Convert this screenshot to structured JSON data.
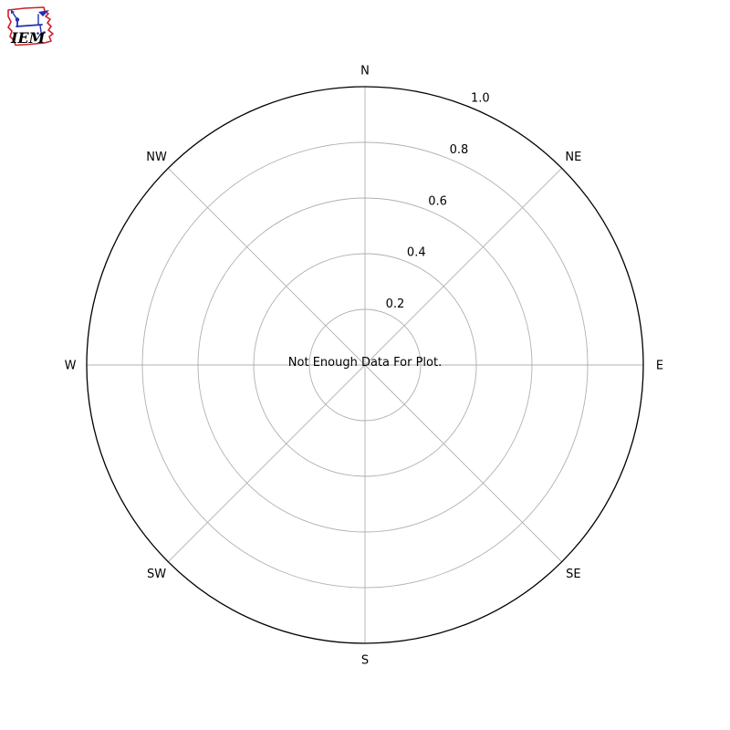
{
  "logo": {
    "name": "Iowa Environmental Mesonet",
    "text": "IEM",
    "red": "#cc2129",
    "blue": "#2330b2"
  },
  "chart_data": {
    "type": "polar_windrose",
    "title": "",
    "directions": [
      "N",
      "NE",
      "E",
      "SE",
      "S",
      "SW",
      "W",
      "NW"
    ],
    "radial_ticks": [
      0.2,
      0.4,
      0.6,
      0.8,
      1.0
    ],
    "radial_tick_labels": [
      "0.2",
      "0.4",
      "0.6",
      "0.8",
      "1.0"
    ],
    "rlim": [
      0,
      1.0
    ],
    "series": [],
    "annotation": "Not Enough Data For Plot.",
    "grid": true,
    "legend_position": "none",
    "colors": {
      "grid": "#b0b0b0",
      "spine": "#000000",
      "text": "#000000",
      "background": "#ffffff"
    }
  }
}
